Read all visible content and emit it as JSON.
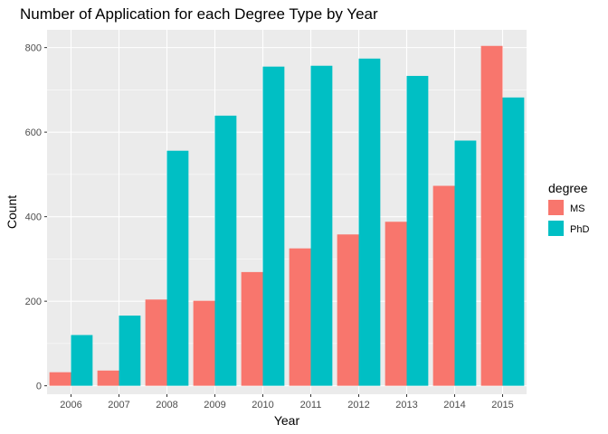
{
  "chart_data": {
    "type": "bar",
    "title": "Number of Application for each Degree Type by Year",
    "xlabel": "Year",
    "ylabel": "Count",
    "categories": [
      "2006",
      "2007",
      "2008",
      "2009",
      "2010",
      "2011",
      "2012",
      "2013",
      "2014",
      "2015"
    ],
    "series": [
      {
        "name": "MS",
        "color": "#F8766D",
        "values": [
          32,
          36,
          204,
          201,
          269,
          325,
          358,
          388,
          473,
          804
        ]
      },
      {
        "name": "PhD",
        "color": "#00BFC4",
        "values": [
          120,
          166,
          556,
          639,
          755,
          757,
          774,
          733,
          580,
          682
        ]
      }
    ],
    "ylim": [
      -20,
      842
    ],
    "yticks": [
      0,
      200,
      400,
      600,
      800
    ],
    "grid": true,
    "legend": {
      "title": "degree",
      "position": "right"
    }
  }
}
